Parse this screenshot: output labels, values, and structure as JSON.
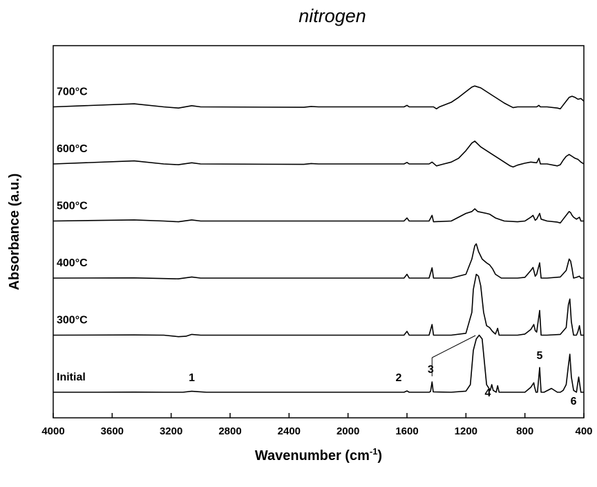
{
  "chart_data": {
    "type": "line",
    "title": "nitrogen",
    "xlabel_main": "Wavenumber (cm",
    "xlabel_sup": "-1",
    "xlabel_close": ")",
    "ylabel": "Absorbance (a.u.)",
    "xlim": [
      4000,
      400
    ],
    "x_reversed": true,
    "y_tick_labels": false,
    "grid": false,
    "xticks": [
      "4000",
      "3600",
      "3200",
      "2800",
      "2400",
      "2000",
      "1600",
      "1200",
      "800",
      "400"
    ],
    "xtick_values": [
      4000,
      3600,
      3200,
      2800,
      2400,
      2000,
      1600,
      1200,
      800,
      400
    ],
    "series": [
      {
        "name": "Initial",
        "offset": 0,
        "points": [
          [
            4000,
            0
          ],
          [
            3700,
            0
          ],
          [
            3450,
            0.3
          ],
          [
            3250,
            0
          ],
          [
            3120,
            0
          ],
          [
            3060,
            2.5
          ],
          [
            3020,
            1.5
          ],
          [
            2960,
            0
          ],
          [
            2000,
            0
          ],
          [
            1620,
            0
          ],
          [
            1600,
            3.5
          ],
          [
            1585,
            0
          ],
          [
            1450,
            0
          ],
          [
            1440,
            2
          ],
          [
            1430,
            27
          ],
          [
            1422,
            1
          ],
          [
            1300,
            0
          ],
          [
            1200,
            3
          ],
          [
            1170,
            20
          ],
          [
            1150,
            110
          ],
          [
            1130,
            140
          ],
          [
            1110,
            150
          ],
          [
            1090,
            140
          ],
          [
            1075,
            80
          ],
          [
            1060,
            20
          ],
          [
            1035,
            5
          ],
          [
            1025,
            20
          ],
          [
            1015,
            5
          ],
          [
            995,
            0
          ],
          [
            985,
            17
          ],
          [
            975,
            0
          ],
          [
            900,
            0
          ],
          [
            840,
            0
          ],
          [
            800,
            0
          ],
          [
            760,
            13
          ],
          [
            740,
            25
          ],
          [
            735,
            15
          ],
          [
            725,
            0
          ],
          [
            715,
            0
          ],
          [
            700,
            65
          ],
          [
            695,
            30
          ],
          [
            690,
            0
          ],
          [
            670,
            0
          ],
          [
            620,
            10
          ],
          [
            580,
            0
          ],
          [
            560,
            0
          ],
          [
            540,
            5
          ],
          [
            520,
            20
          ],
          [
            505,
            70
          ],
          [
            495,
            100
          ],
          [
            485,
            40
          ],
          [
            470,
            5
          ],
          [
            450,
            0
          ],
          [
            445,
            15
          ],
          [
            435,
            40
          ],
          [
            420,
            0
          ],
          [
            400,
            0
          ]
        ]
      },
      {
        "name": "300°C",
        "offset": 1,
        "points": [
          [
            4000,
            0
          ],
          [
            3450,
            0.5
          ],
          [
            3250,
            0
          ],
          [
            3150,
            -4
          ],
          [
            3100,
            -3
          ],
          [
            3060,
            2
          ],
          [
            3000,
            0
          ],
          [
            2000,
            0
          ],
          [
            1620,
            0
          ],
          [
            1600,
            10
          ],
          [
            1585,
            0
          ],
          [
            1450,
            0
          ],
          [
            1430,
            28
          ],
          [
            1420,
            0
          ],
          [
            1300,
            0
          ],
          [
            1200,
            5
          ],
          [
            1160,
            60
          ],
          [
            1150,
            120
          ],
          [
            1130,
            160
          ],
          [
            1115,
            155
          ],
          [
            1100,
            130
          ],
          [
            1080,
            60
          ],
          [
            1060,
            25
          ],
          [
            1040,
            20
          ],
          [
            1020,
            10
          ],
          [
            1000,
            3
          ],
          [
            985,
            18
          ],
          [
            975,
            0
          ],
          [
            850,
            0
          ],
          [
            800,
            3
          ],
          [
            760,
            15
          ],
          [
            740,
            28
          ],
          [
            730,
            12
          ],
          [
            720,
            8
          ],
          [
            700,
            65
          ],
          [
            690,
            0
          ],
          [
            650,
            0
          ],
          [
            560,
            2
          ],
          [
            520,
            20
          ],
          [
            505,
            80
          ],
          [
            495,
            95
          ],
          [
            485,
            35
          ],
          [
            470,
            0
          ],
          [
            450,
            0
          ],
          [
            440,
            10
          ],
          [
            430,
            25
          ],
          [
            420,
            0
          ],
          [
            400,
            0
          ]
        ]
      },
      {
        "name": "400°C",
        "offset": 2,
        "points": [
          [
            4000,
            0
          ],
          [
            3450,
            0.5
          ],
          [
            3150,
            -2
          ],
          [
            3060,
            3
          ],
          [
            3000,
            0
          ],
          [
            2000,
            0
          ],
          [
            1620,
            0
          ],
          [
            1600,
            10
          ],
          [
            1585,
            0
          ],
          [
            1450,
            0
          ],
          [
            1430,
            27
          ],
          [
            1420,
            0
          ],
          [
            1300,
            0
          ],
          [
            1200,
            10
          ],
          [
            1160,
            50
          ],
          [
            1140,
            85
          ],
          [
            1130,
            90
          ],
          [
            1115,
            70
          ],
          [
            1090,
            50
          ],
          [
            1060,
            40
          ],
          [
            1040,
            35
          ],
          [
            1020,
            25
          ],
          [
            1000,
            10
          ],
          [
            960,
            0
          ],
          [
            850,
            0
          ],
          [
            800,
            2
          ],
          [
            760,
            20
          ],
          [
            745,
            28
          ],
          [
            730,
            5
          ],
          [
            720,
            10
          ],
          [
            700,
            40
          ],
          [
            690,
            0
          ],
          [
            650,
            0
          ],
          [
            560,
            3
          ],
          [
            520,
            20
          ],
          [
            500,
            50
          ],
          [
            490,
            45
          ],
          [
            480,
            25
          ],
          [
            470,
            0
          ],
          [
            450,
            2
          ],
          [
            430,
            5
          ],
          [
            420,
            0
          ],
          [
            400,
            0
          ]
        ]
      },
      {
        "name": "500°C",
        "offset": 3,
        "points": [
          [
            4000,
            0
          ],
          [
            3450,
            3
          ],
          [
            3250,
            0
          ],
          [
            3150,
            -2
          ],
          [
            3060,
            3
          ],
          [
            3000,
            0
          ],
          [
            2000,
            0
          ],
          [
            1620,
            0
          ],
          [
            1600,
            8
          ],
          [
            1585,
            0
          ],
          [
            1450,
            0
          ],
          [
            1430,
            15
          ],
          [
            1420,
            -2
          ],
          [
            1300,
            0
          ],
          [
            1250,
            10
          ],
          [
            1200,
            20
          ],
          [
            1160,
            25
          ],
          [
            1140,
            32
          ],
          [
            1120,
            25
          ],
          [
            1060,
            20
          ],
          [
            1040,
            18
          ],
          [
            1000,
            8
          ],
          [
            940,
            0
          ],
          [
            850,
            -2
          ],
          [
            800,
            0
          ],
          [
            760,
            10
          ],
          [
            745,
            15
          ],
          [
            730,
            2
          ],
          [
            720,
            5
          ],
          [
            700,
            20
          ],
          [
            690,
            5
          ],
          [
            650,
            0
          ],
          [
            580,
            -3
          ],
          [
            560,
            -5
          ],
          [
            540,
            5
          ],
          [
            520,
            15
          ],
          [
            500,
            25
          ],
          [
            490,
            22
          ],
          [
            480,
            15
          ],
          [
            470,
            10
          ],
          [
            450,
            5
          ],
          [
            430,
            10
          ],
          [
            420,
            0
          ],
          [
            400,
            0
          ]
        ]
      },
      {
        "name": "600°C",
        "offset": 4,
        "points": [
          [
            4000,
            0
          ],
          [
            3450,
            8
          ],
          [
            3250,
            0
          ],
          [
            3150,
            -2
          ],
          [
            3060,
            3
          ],
          [
            3000,
            0
          ],
          [
            2300,
            -1
          ],
          [
            2250,
            1
          ],
          [
            2200,
            0
          ],
          [
            2000,
            0
          ],
          [
            1620,
            0
          ],
          [
            1600,
            4
          ],
          [
            1585,
            0
          ],
          [
            1450,
            0
          ],
          [
            1430,
            5
          ],
          [
            1400,
            -5
          ],
          [
            1350,
            0
          ],
          [
            1300,
            5
          ],
          [
            1250,
            15
          ],
          [
            1200,
            35
          ],
          [
            1160,
            55
          ],
          [
            1140,
            60
          ],
          [
            1100,
            45
          ],
          [
            1060,
            35
          ],
          [
            1020,
            25
          ],
          [
            980,
            15
          ],
          [
            940,
            5
          ],
          [
            900,
            -5
          ],
          [
            880,
            -8
          ],
          [
            850,
            -3
          ],
          [
            800,
            2
          ],
          [
            760,
            5
          ],
          [
            720,
            3
          ],
          [
            705,
            15
          ],
          [
            695,
            0
          ],
          [
            650,
            0
          ],
          [
            580,
            -5
          ],
          [
            560,
            -2
          ],
          [
            540,
            10
          ],
          [
            520,
            20
          ],
          [
            500,
            25
          ],
          [
            480,
            20
          ],
          [
            460,
            15
          ],
          [
            440,
            12
          ],
          [
            420,
            5
          ],
          [
            400,
            0
          ]
        ]
      },
      {
        "name": "700°C",
        "offset": 5,
        "points": [
          [
            4000,
            0
          ],
          [
            3450,
            8
          ],
          [
            3250,
            0
          ],
          [
            3150,
            -3
          ],
          [
            3060,
            3
          ],
          [
            3000,
            0
          ],
          [
            2300,
            -1
          ],
          [
            2250,
            1
          ],
          [
            2200,
            0
          ],
          [
            2000,
            0
          ],
          [
            1620,
            0
          ],
          [
            1600,
            4
          ],
          [
            1585,
            0
          ],
          [
            1450,
            0
          ],
          [
            1420,
            0
          ],
          [
            1400,
            -5
          ],
          [
            1380,
            0
          ],
          [
            1300,
            12
          ],
          [
            1250,
            25
          ],
          [
            1200,
            40
          ],
          [
            1160,
            52
          ],
          [
            1140,
            55
          ],
          [
            1100,
            50
          ],
          [
            1060,
            40
          ],
          [
            1020,
            30
          ],
          [
            980,
            20
          ],
          [
            940,
            10
          ],
          [
            900,
            2
          ],
          [
            880,
            -2
          ],
          [
            850,
            0
          ],
          [
            720,
            0
          ],
          [
            705,
            4
          ],
          [
            695,
            0
          ],
          [
            650,
            0
          ],
          [
            580,
            -3
          ],
          [
            560,
            -5
          ],
          [
            540,
            5
          ],
          [
            520,
            15
          ],
          [
            500,
            25
          ],
          [
            480,
            28
          ],
          [
            460,
            25
          ],
          [
            440,
            20
          ],
          [
            420,
            22
          ],
          [
            400,
            15
          ]
        ]
      }
    ],
    "peak_labels": [
      "1",
      "2",
      "3",
      "4",
      "5",
      "6"
    ],
    "peak_positions": [
      3060,
      1600,
      1430,
      1080,
      700,
      470
    ]
  }
}
